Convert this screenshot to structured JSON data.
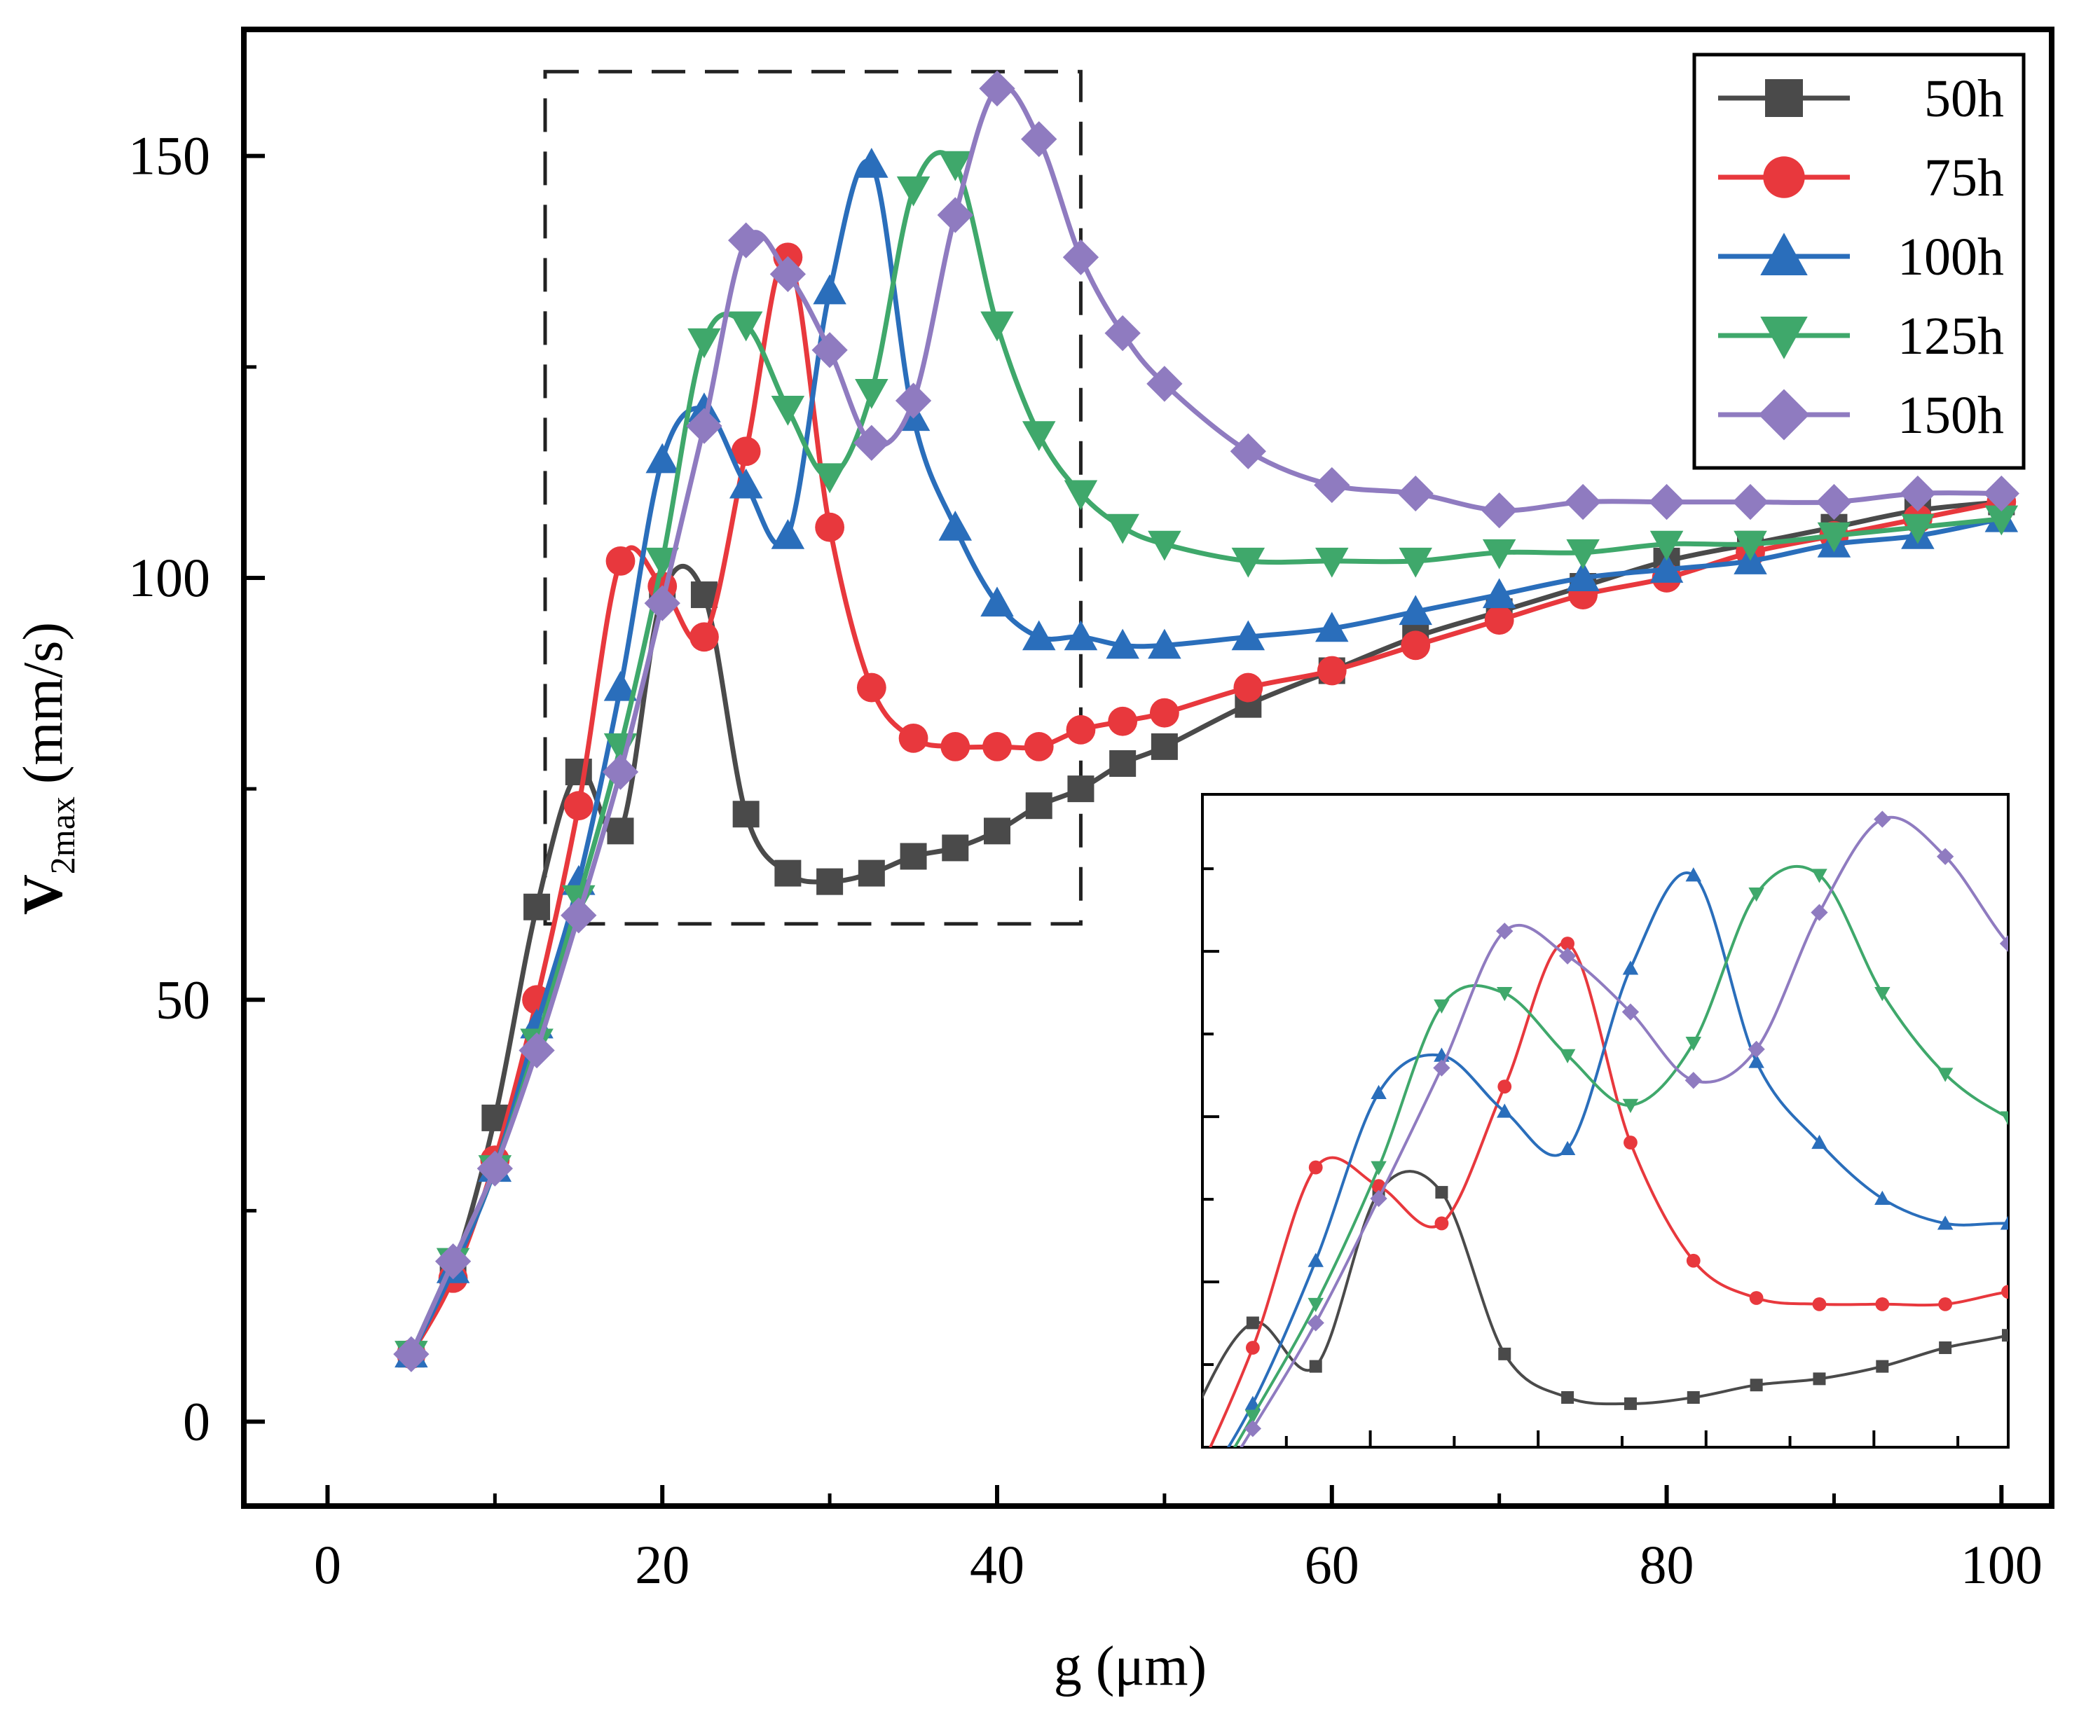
{
  "chart_data": {
    "type": "line",
    "xlabel": "g (μm)",
    "ylabel_main": "V",
    "ylabel_sub": "2max",
    "ylabel_unit": "(mm/s)",
    "xlim": [
      -5,
      103
    ],
    "ylim": [
      -10,
      165
    ],
    "xticks": [
      0,
      20,
      40,
      60,
      80,
      100
    ],
    "yticks": [
      0,
      50,
      100,
      150
    ],
    "grid": false,
    "legend_position": "top-right",
    "highlight_box": {
      "x": [
        13,
        45
      ],
      "y": [
        59,
        160
      ]
    },
    "inset": {
      "xlim": [
        13,
        45
      ],
      "ylim": [
        57,
        162
      ],
      "description": "zoom of dashed region"
    },
    "series": [
      {
        "name": "50h",
        "color": "#4a4a4a",
        "marker": "square",
        "x": [
          5,
          7.5,
          10,
          12.5,
          15,
          17.5,
          20,
          22.5,
          25,
          27.5,
          30,
          32.5,
          35,
          37.5,
          40,
          42.5,
          45,
          47.5,
          50,
          55,
          60,
          65,
          70,
          75,
          80,
          85,
          90,
          95,
          100
        ],
        "y": [
          8,
          18,
          36,
          61,
          77,
          70,
          98,
          98,
          72,
          65,
          64,
          65,
          67,
          68,
          70,
          73,
          75,
          78,
          80,
          85,
          89,
          93,
          96,
          99,
          102,
          104,
          106,
          108,
          109
        ]
      },
      {
        "name": "75h",
        "color": "#e8383d",
        "marker": "circle",
        "x": [
          5,
          7.5,
          10,
          12.5,
          15,
          17.5,
          20,
          22.5,
          25,
          27.5,
          30,
          32.5,
          35,
          37.5,
          40,
          42.5,
          45,
          47.5,
          50,
          55,
          60,
          65,
          70,
          75,
          80,
          85,
          90,
          95,
          100
        ],
        "y": [
          8,
          17,
          31,
          50,
          73,
          102,
          99,
          93,
          115,
          138,
          106,
          87,
          81,
          80,
          80,
          80,
          82,
          83,
          84,
          87,
          89,
          92,
          95,
          98,
          100,
          103,
          105,
          107,
          109
        ]
      },
      {
        "name": "100h",
        "color": "#2a6ebb",
        "marker": "triangle-up",
        "x": [
          5,
          7.5,
          10,
          12.5,
          15,
          17.5,
          20,
          22.5,
          25,
          27.5,
          30,
          32.5,
          35,
          37.5,
          40,
          42.5,
          45,
          47.5,
          50,
          55,
          60,
          65,
          70,
          75,
          80,
          85,
          90,
          95,
          100
        ],
        "y": [
          8,
          18,
          30,
          47,
          64,
          87,
          114,
          120,
          111,
          105,
          134,
          149,
          119,
          106,
          97,
          93,
          93,
          92,
          92,
          93,
          94,
          96,
          98,
          100,
          101,
          102,
          104,
          105,
          107
        ]
      },
      {
        "name": "125h",
        "color": "#3fa86b",
        "marker": "triangle-down",
        "x": [
          5,
          7.5,
          10,
          12.5,
          15,
          17.5,
          20,
          22.5,
          25,
          27.5,
          30,
          32.5,
          35,
          37.5,
          40,
          42.5,
          45,
          47.5,
          50,
          55,
          60,
          65,
          70,
          75,
          80,
          85,
          90,
          95,
          100
        ],
        "y": [
          8,
          19,
          30,
          45,
          62,
          80,
          102,
          128,
          130,
          120,
          112,
          122,
          146,
          149,
          130,
          117,
          110,
          106,
          104,
          102,
          102,
          102,
          103,
          103,
          104,
          104,
          105,
          106,
          107
        ]
      },
      {
        "name": "150h",
        "color": "#8f7bc0",
        "marker": "diamond",
        "x": [
          5,
          7.5,
          10,
          12.5,
          15,
          17.5,
          20,
          22.5,
          25,
          27.5,
          30,
          32.5,
          35,
          37.5,
          40,
          42.5,
          45,
          47.5,
          50,
          55,
          60,
          65,
          70,
          75,
          80,
          85,
          90,
          95,
          100
        ],
        "y": [
          8,
          19,
          30,
          44,
          60,
          77,
          97,
          118,
          140,
          136,
          127,
          116,
          121,
          143,
          158,
          152,
          138,
          129,
          123,
          115,
          111,
          110,
          108,
          109,
          109,
          109,
          109,
          110,
          110
        ]
      }
    ]
  }
}
